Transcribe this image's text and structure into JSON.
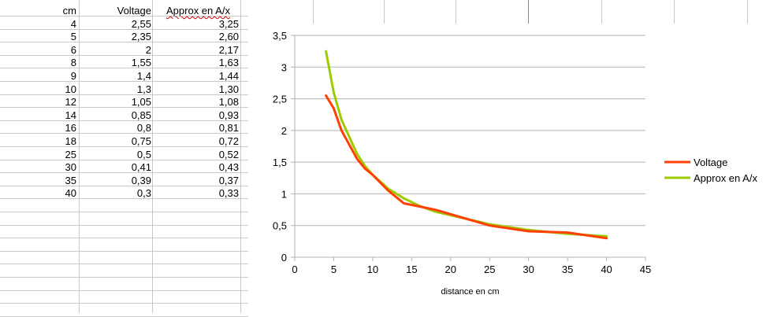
{
  "sheet": {
    "headers": [
      "cm",
      "Voltage",
      "Approx en A/x"
    ],
    "rows": [
      [
        "4",
        "2,55",
        "3,25"
      ],
      [
        "5",
        "2,35",
        "2,60"
      ],
      [
        "6",
        "2",
        "2,17"
      ],
      [
        "8",
        "1,55",
        "1,63"
      ],
      [
        "9",
        "1,4",
        "1,44"
      ],
      [
        "10",
        "1,3",
        "1,30"
      ],
      [
        "12",
        "1,05",
        "1,08"
      ],
      [
        "14",
        "0,85",
        "0,93"
      ],
      [
        "16",
        "0,8",
        "0,81"
      ],
      [
        "18",
        "0,75",
        "0,72"
      ],
      [
        "25",
        "0,5",
        "0,52"
      ],
      [
        "30",
        "0,41",
        "0,43"
      ],
      [
        "35",
        "0,39",
        "0,37"
      ],
      [
        "40",
        "0,3",
        "0,33"
      ]
    ]
  },
  "chart_data": {
    "type": "line",
    "x": [
      4,
      5,
      6,
      8,
      9,
      10,
      12,
      14,
      16,
      18,
      25,
      30,
      35,
      40
    ],
    "series": [
      {
        "name": "Voltage",
        "color": "#ff4000",
        "values": [
          2.55,
          2.35,
          2,
          1.55,
          1.4,
          1.3,
          1.05,
          0.85,
          0.8,
          0.75,
          0.5,
          0.41,
          0.39,
          0.3
        ]
      },
      {
        "name": "Approx en A/x",
        "color": "#9ccc00",
        "values": [
          3.25,
          2.6,
          2.17,
          1.63,
          1.44,
          1.3,
          1.08,
          0.93,
          0.81,
          0.72,
          0.52,
          0.43,
          0.37,
          0.33
        ]
      }
    ],
    "xlabel": "distance en cm",
    "ylabel": "",
    "xlim": [
      0,
      45
    ],
    "ylim": [
      0,
      3.5
    ],
    "xticks": [
      "0",
      "5",
      "10",
      "15",
      "20",
      "25",
      "30",
      "35",
      "40",
      "45"
    ],
    "yticks": [
      "0",
      "0,5",
      "1",
      "1,5",
      "2",
      "2,5",
      "3",
      "3,5"
    ],
    "grid": "horizontal",
    "legend": "right"
  }
}
